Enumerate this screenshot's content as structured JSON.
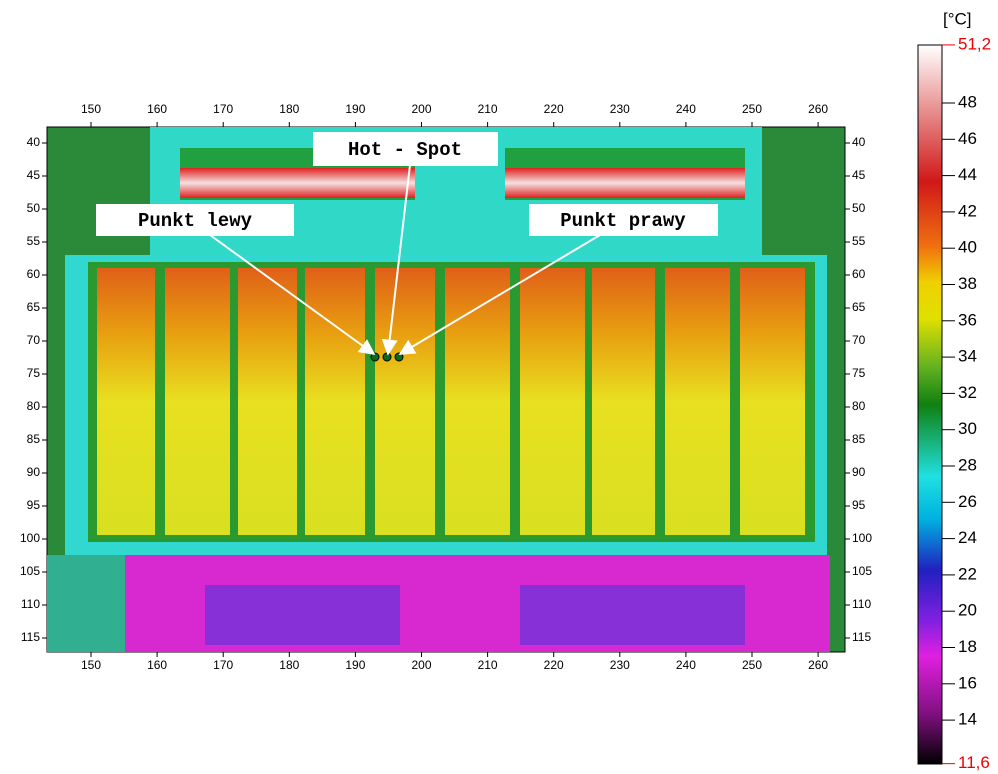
{
  "image": {
    "x_ticks": [
      150,
      160,
      170,
      180,
      190,
      200,
      210,
      220,
      230,
      240,
      250,
      260
    ],
    "y_ticks": [
      40,
      45,
      50,
      55,
      60,
      65,
      70,
      75,
      80,
      85,
      90,
      95,
      100,
      105,
      110,
      115
    ],
    "annotations": [
      "Hot - Spot",
      "Punkt lewy",
      "Punkt prawy"
    ]
  },
  "scale": {
    "unit": "[°C]",
    "ticks": [
      {
        "value": 51.2,
        "label": "51,2"
      },
      48,
      46,
      44,
      42,
      40,
      38,
      36,
      34,
      32,
      30,
      28,
      26,
      24,
      22,
      20,
      18,
      16,
      14,
      {
        "value": 11.6,
        "label": "11,6"
      }
    ]
  }
}
